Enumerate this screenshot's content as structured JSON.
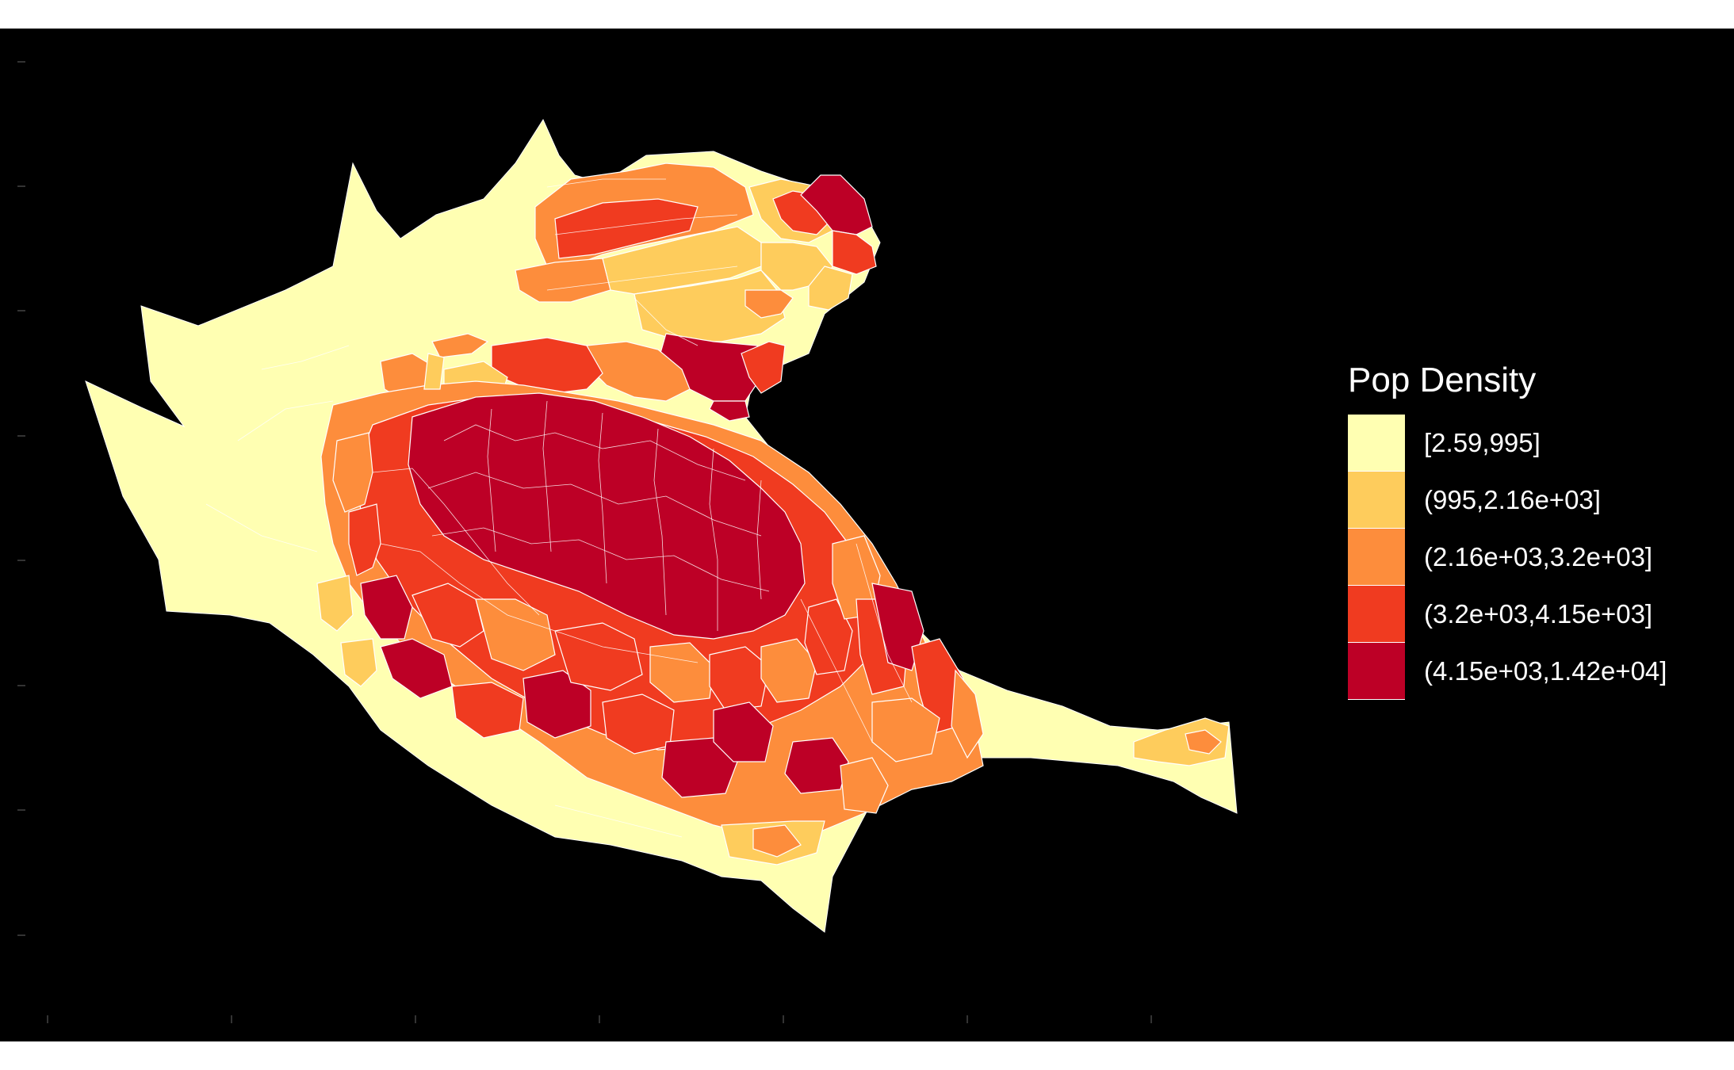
{
  "legend": {
    "title": "Pop Density",
    "classes": [
      {
        "label": "[2.59,995]",
        "color": "#ffffb2"
      },
      {
        "label": "(995,2.16e+03]",
        "color": "#fecc5c"
      },
      {
        "label": "(2.16e+03,3.2e+03]",
        "color": "#fd8d3c"
      },
      {
        "label": "(3.2e+03,4.15e+03]",
        "color": "#f03b20"
      },
      {
        "label": "(4.15e+03,1.42e+04]",
        "color": "#bd0026"
      }
    ]
  },
  "colors": {
    "panel_background": "#000000",
    "page_background": "#ffffff",
    "boundary": "#ffffff"
  }
}
